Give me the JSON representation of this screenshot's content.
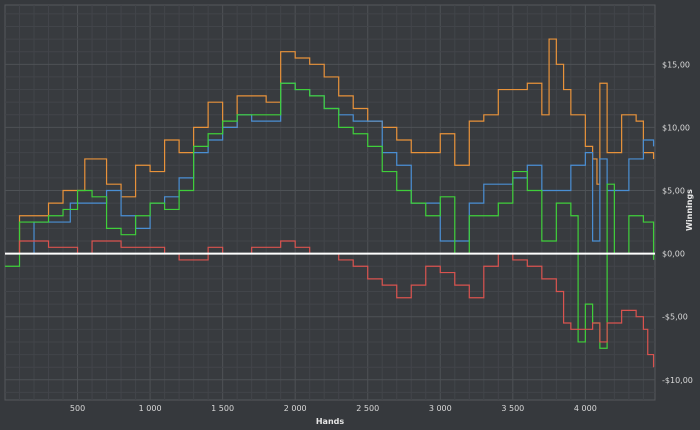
{
  "chart_data": {
    "type": "line",
    "title": "",
    "xlabel": "Hands",
    "ylabel": "Winnings",
    "xlim": [
      0,
      4480
    ],
    "ylim": [
      -11.6,
      19.7
    ],
    "grid": true,
    "legend": "none",
    "x_ticks": [
      500,
      1000,
      1500,
      2000,
      2500,
      3000,
      3500,
      4000
    ],
    "x_tick_labels": [
      "500",
      "1 000",
      "1 500",
      "2 000",
      "2 500",
      "3 000",
      "3 500",
      "4 000"
    ],
    "y_ticks": [
      15,
      10,
      5,
      0,
      -5,
      -10
    ],
    "y_tick_labels": [
      "$15,00",
      "$10,00",
      "$5,00",
      "$0,00",
      "-$5,00",
      "-$10,00"
    ],
    "zero_line_color": "#ffffff",
    "series": [
      {
        "color": "#e8923a",
        "x": [
          0,
          100,
          300,
          400,
          550,
          700,
          800,
          900,
          1000,
          1100,
          1200,
          1300,
          1400,
          1500,
          1600,
          1700,
          1800,
          1900,
          2000,
          2100,
          2200,
          2300,
          2400,
          2500,
          2600,
          2700,
          2800,
          2900,
          3000,
          3100,
          3200,
          3300,
          3400,
          3500,
          3600,
          3700,
          3750,
          3800,
          3850,
          3900,
          4000,
          4050,
          4080,
          4100,
          4150,
          4250,
          4350,
          4400,
          4470
        ],
        "y": [
          0,
          3,
          4,
          5,
          7.5,
          5.5,
          4.5,
          7,
          6.5,
          9,
          8,
          10,
          12,
          10,
          12.5,
          12.5,
          12,
          16,
          15.5,
          15,
          14,
          12.5,
          11.5,
          10.5,
          10,
          9,
          8,
          8,
          9.5,
          7,
          10.5,
          11,
          13,
          13,
          13.5,
          11,
          17,
          15,
          13,
          11,
          8.5,
          7.5,
          5.5,
          13.5,
          8,
          11,
          10.5,
          8,
          7.5
        ]
      },
      {
        "color": "#4a8fd4",
        "x": [
          0,
          200,
          400,
          450,
          600,
          700,
          800,
          900,
          1000,
          1100,
          1200,
          1300,
          1400,
          1500,
          1600,
          1700,
          1900,
          2000,
          2100,
          2200,
          2300,
          2400,
          2600,
          2700,
          2800,
          2900,
          3000,
          3100,
          3200,
          3300,
          3400,
          3500,
          3600,
          3700,
          3800,
          3900,
          4000,
          4050,
          4100,
          4150,
          4200,
          4300,
          4400,
          4470
        ],
        "y": [
          0,
          2.5,
          2.5,
          4,
          4,
          5,
          3,
          2,
          4,
          4.5,
          6,
          8,
          9,
          10,
          11,
          10.5,
          13.5,
          13,
          12.5,
          11.5,
          11,
          10.5,
          8,
          7,
          4,
          4,
          1,
          1,
          4,
          5.5,
          5.5,
          6,
          7,
          5,
          5,
          7,
          8,
          1,
          7.5,
          5,
          5,
          7.5,
          9,
          8.5
        ]
      },
      {
        "color": "#3fcf3a",
        "x": [
          0,
          100,
          300,
          400,
          500,
          600,
          700,
          800,
          900,
          1000,
          1100,
          1200,
          1300,
          1400,
          1500,
          1600,
          1700,
          1900,
          2000,
          2100,
          2200,
          2300,
          2400,
          2500,
          2600,
          2700,
          2800,
          2900,
          3000,
          3100,
          3200,
          3300,
          3400,
          3500,
          3600,
          3700,
          3800,
          3900,
          3950,
          4000,
          4050,
          4100,
          4150,
          4200,
          4300,
          4400,
          4470
        ],
        "y": [
          -1,
          2.5,
          3,
          3.5,
          5,
          4.5,
          2,
          1.5,
          3,
          4,
          3.5,
          5,
          8.5,
          9.5,
          10.5,
          11,
          11,
          13.5,
          13,
          12.5,
          11.5,
          10,
          9.5,
          8.5,
          6.5,
          5,
          4,
          3,
          4.5,
          0,
          3,
          3,
          4,
          6.5,
          5,
          1,
          4,
          3,
          -7,
          -4,
          -5.5,
          -7.5,
          5.5,
          0,
          3,
          2.5,
          -0.5
        ]
      },
      {
        "color": "#d9534f",
        "x": [
          0,
          100,
          200,
          300,
          400,
          500,
          600,
          700,
          800,
          900,
          1000,
          1100,
          1200,
          1300,
          1400,
          1500,
          1700,
          1900,
          2000,
          2100,
          2200,
          2300,
          2400,
          2500,
          2600,
          2700,
          2800,
          2900,
          3000,
          3100,
          3200,
          3300,
          3400,
          3500,
          3600,
          3700,
          3800,
          3850,
          3900,
          4000,
          4050,
          4100,
          4150,
          4200,
          4250,
          4350,
          4400,
          4430,
          4470
        ],
        "y": [
          0,
          1,
          1,
          0.5,
          0.5,
          0,
          1,
          1,
          0.5,
          0.5,
          0.5,
          0,
          -0.5,
          -0.5,
          0.5,
          0,
          0.5,
          1,
          0.5,
          0,
          0,
          -0.5,
          -1,
          -2,
          -2.5,
          -3.5,
          -2.5,
          -1,
          -1.5,
          -2.5,
          -3.5,
          -1,
          0,
          -0.5,
          -1,
          -2,
          -3,
          -5.5,
          -6,
          -6,
          -5.5,
          -7,
          -5.5,
          -5.5,
          -4.5,
          -5,
          -6,
          -8,
          -9
        ]
      }
    ]
  }
}
